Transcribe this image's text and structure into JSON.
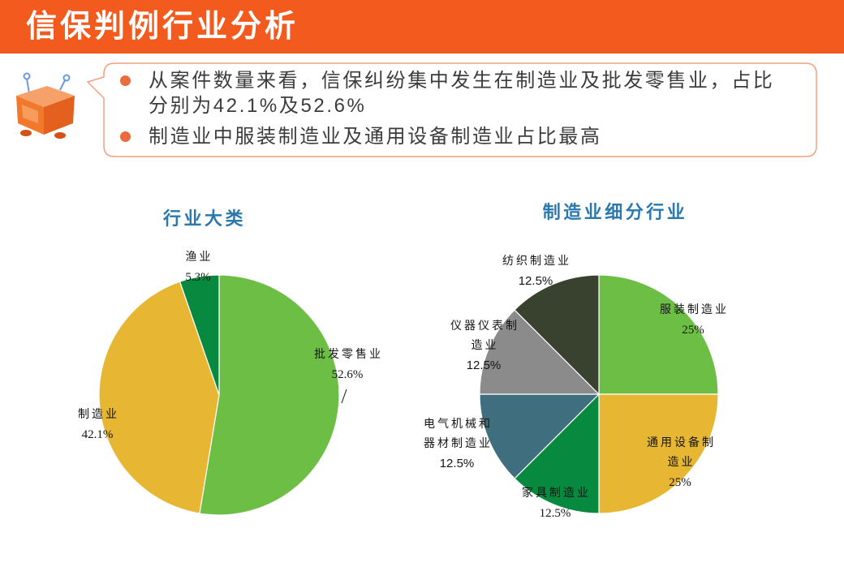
{
  "header": {
    "title": "信保判例行业分析"
  },
  "mascot": {
    "icon": "robot-mascot-icon"
  },
  "callout": {
    "bullets": [
      "从案件数量来看，信保纠纷集中发生在制造业及批发零售业，占比分别为42.1%及52.6%",
      "制造业中服装制造业及通用设备制造业占比最高"
    ]
  },
  "colors": {
    "header_bg": "#F25A1E",
    "header_text": "#FFFFFF",
    "callout_border": "#F2A07C",
    "bullet_dot": "#EA6B3D",
    "body_text": "#3C3C3C",
    "chart_title": "#2A78AE"
  },
  "chart_data": [
    {
      "type": "pie",
      "title": "行业大类",
      "categories": [
        "批发零售业",
        "制造业",
        "渔业"
      ],
      "values": [
        52.6,
        42.1,
        5.3
      ],
      "value_suffix": "%",
      "colors": [
        "#6CBE45",
        "#E7B632",
        "#07893F"
      ]
    },
    {
      "type": "pie",
      "title": "制造业细分行业",
      "categories": [
        "服装制造业",
        "通用设备制造业",
        "家具制造业",
        "电气机械和器材制造业",
        "仪器仪表制造业",
        "纺织制造业"
      ],
      "values": [
        25,
        25,
        12.5,
        12.5,
        12.5,
        12.5
      ],
      "value_suffix": "%",
      "colors": [
        "#6CBE45",
        "#E7B632",
        "#07893F",
        "#3F6F7E",
        "#8B8B8B",
        "#39412F"
      ]
    }
  ]
}
